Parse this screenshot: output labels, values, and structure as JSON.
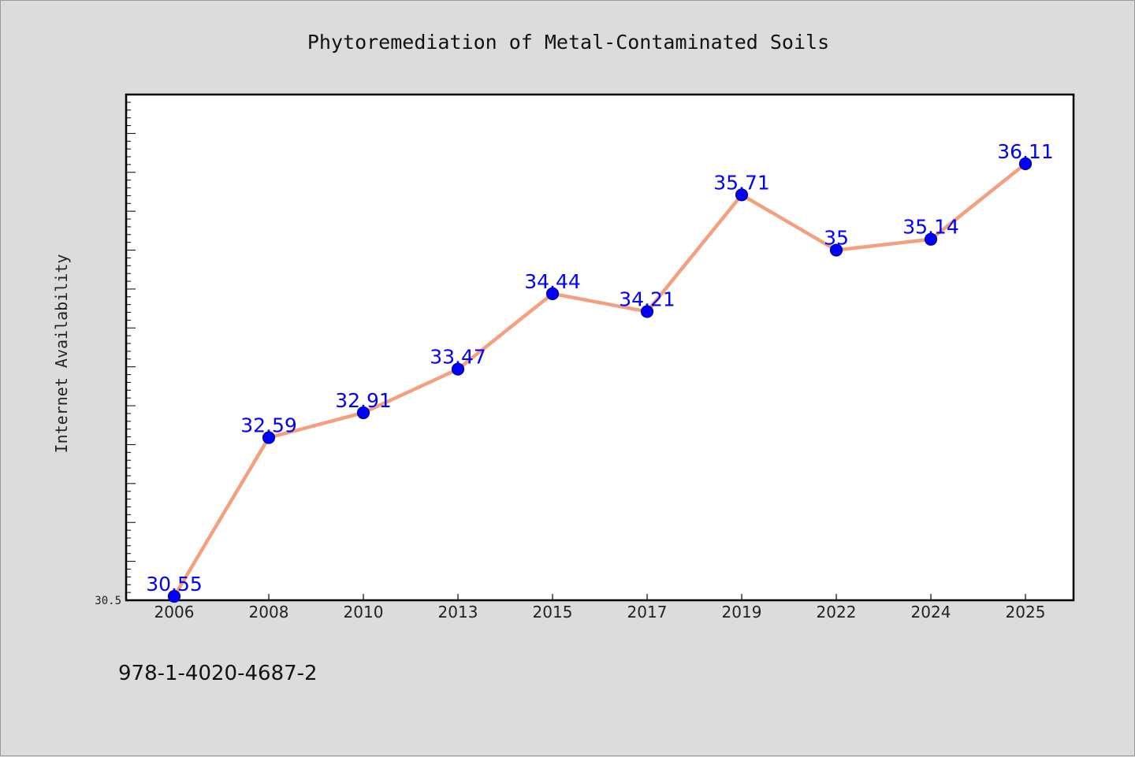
{
  "chart_data": {
    "type": "line",
    "title": "Phytoremediation of Metal-Contaminated Soils",
    "xlabel": "",
    "ylabel": "Internet Availability",
    "categories": [
      "2006",
      "2008",
      "2010",
      "2013",
      "2015",
      "2017",
      "2019",
      "2022",
      "2024",
      "2025"
    ],
    "series": [
      {
        "values": [
          30.55,
          32.59,
          32.91,
          33.47,
          34.44,
          34.21,
          35.71,
          35,
          35.14,
          36.11
        ],
        "data_labels": [
          "30.55",
          "32.59",
          "32.91",
          "33.47",
          "34.44",
          "34.21",
          "35.71",
          "35",
          "35.14",
          "36.11"
        ]
      }
    ],
    "ylim": [
      30.5,
      37.0
    ],
    "y_tick_labels": [
      "30.5"
    ],
    "grid": false,
    "legend": "none",
    "colors": {
      "line": "#f4a07f",
      "marker_fill": "#0000ff",
      "marker_stroke": "#00008b",
      "data_label": "#0000ff",
      "background": "#dcdcdc",
      "plot_background": "#ffffff"
    }
  },
  "footer": {
    "text": "978-1-4020-4687-2"
  }
}
